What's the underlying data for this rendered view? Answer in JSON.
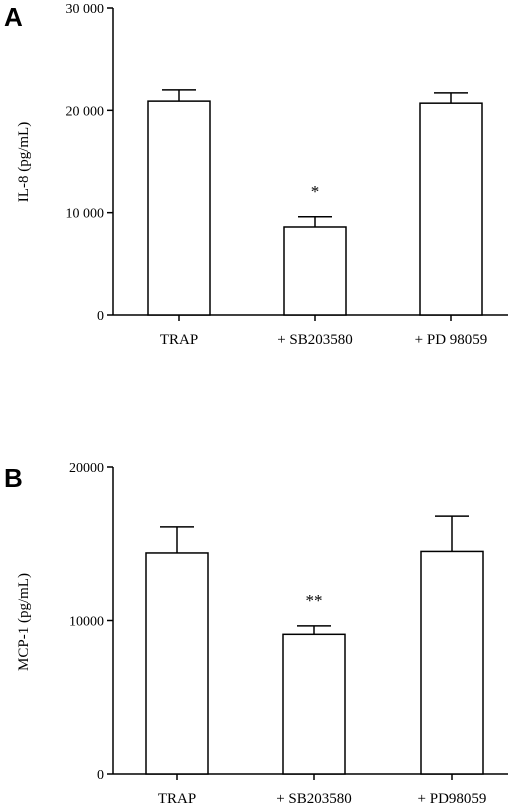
{
  "chart_data": [
    {
      "type": "bar",
      "panel": "A",
      "ylabel": "IL-8 (pg/mL)",
      "ylim": [
        0,
        30000
      ],
      "yticks": [
        0,
        10000,
        20000,
        30000
      ],
      "ytick_labels": [
        "0",
        "10 000",
        "20 000",
        "30 000"
      ],
      "categories": [
        "TRAP",
        "+ SB203580",
        "+ PD 98059"
      ],
      "values": [
        20900,
        8600,
        20700
      ],
      "errors": [
        1100,
        1000,
        1000
      ],
      "annotations": [
        "",
        "*",
        ""
      ]
    },
    {
      "type": "bar",
      "panel": "B",
      "ylabel": "MCP-1 (pg/mL)",
      "ylim": [
        0,
        20000
      ],
      "yticks": [
        0,
        10000,
        20000
      ],
      "ytick_labels": [
        "0",
        "10000",
        "20000"
      ],
      "categories": [
        "TRAP",
        "+ SB203580",
        "+ PD98059"
      ],
      "values": [
        14400,
        9100,
        14500
      ],
      "errors": [
        1700,
        550,
        2300
      ],
      "annotations": [
        "",
        "**",
        ""
      ]
    }
  ]
}
